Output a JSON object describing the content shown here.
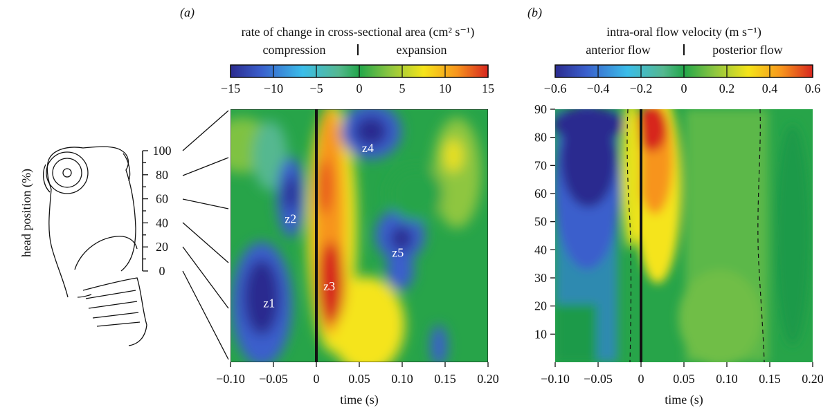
{
  "chart_data": [
    {
      "panel_label": "(a)",
      "type": "heatmap",
      "title": "rate of change in cross-sectional area (cm² s⁻¹)",
      "colorbar": {
        "left_label": "compression",
        "right_label": "expansion",
        "range": [
          -15,
          15
        ],
        "ticks": [
          "−15",
          "−10",
          "−5",
          "0",
          "5",
          "10",
          "15"
        ]
      },
      "xlabel": "time (s)",
      "ylabel": "head position (%)",
      "xlim": [
        -0.1,
        0.2
      ],
      "ylim": [
        -25,
        125
      ],
      "x_ticks": [
        "−0.10",
        "−0.05",
        "0",
        "0.05",
        "0.10",
        "0.15",
        "0.20"
      ],
      "y_ticks": [
        "100",
        "80",
        "60",
        "40",
        "20",
        "0"
      ],
      "vertical_line_x": 0,
      "zones": [
        {
          "label": "z1",
          "x": -0.055,
          "y": 10,
          "value": -14
        },
        {
          "label": "z2",
          "x": -0.03,
          "y": 60,
          "value": -12
        },
        {
          "label": "z3",
          "x": 0.015,
          "y": 20,
          "value": 14
        },
        {
          "label": "z4",
          "x": 0.06,
          "y": 102,
          "value": -13
        },
        {
          "label": "z5",
          "x": 0.095,
          "y": 40,
          "value": -11
        }
      ]
    },
    {
      "panel_label": "(b)",
      "type": "heatmap",
      "title": "intra-oral flow velocity (m s⁻¹)",
      "colorbar": {
        "left_label": "anterior flow",
        "right_label": "posterior flow",
        "range": [
          -0.6,
          0.6
        ],
        "ticks": [
          "−0.6",
          "−0.4",
          "−0.2",
          "0",
          "0.2",
          "0.4",
          "0.6"
        ]
      },
      "xlabel": "time (s)",
      "xlim": [
        -0.1,
        0.2
      ],
      "ylim": [
        0,
        90
      ],
      "x_ticks": [
        "−0.10",
        "−0.05",
        "0",
        "0.05",
        "0.10",
        "0.15",
        "0.20"
      ],
      "y_ticks": [
        "90",
        "80",
        "70",
        "60",
        "50",
        "40",
        "30",
        "20",
        "10"
      ],
      "vertical_line_x": 0,
      "dashed_zero_contours": true
    }
  ]
}
